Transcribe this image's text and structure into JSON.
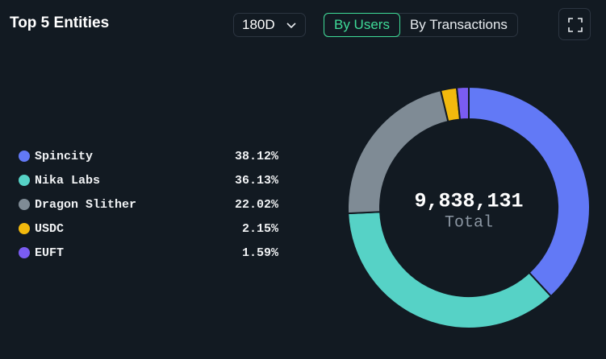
{
  "chart_data": {
    "type": "pie",
    "donut": true,
    "title": "Top 5 Entities",
    "categories": [
      "Spincity",
      "Nika Labs",
      "Dragon Slither",
      "USDC",
      "EUFT"
    ],
    "values": [
      38.12,
      36.13,
      22.02,
      2.15,
      1.59
    ],
    "value_labels": [
      "38.12%",
      "36.13%",
      "22.02%",
      "2.15%",
      "1.59%"
    ],
    "colors": [
      "#6279f6",
      "#56d2c6",
      "#7f8b95",
      "#f2b90d",
      "#7a5cf2"
    ],
    "center_label": "9,838,131",
    "center_caption": "Total"
  },
  "controls": {
    "period": "180D",
    "tabs": [
      "By Users",
      "By Transactions"
    ],
    "active_tab": 0
  }
}
